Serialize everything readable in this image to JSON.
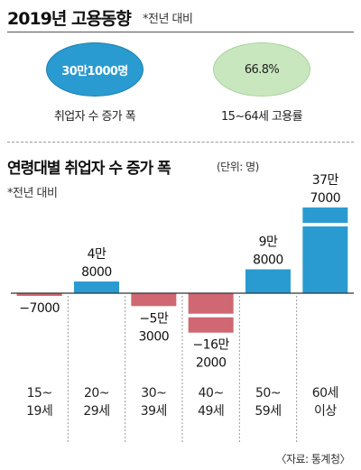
{
  "header": {
    "title": "2019년 고용동향",
    "note": "*전년 대비"
  },
  "stats": [
    {
      "value": "30만1000명",
      "label": "취업자 수 증가 폭",
      "color": "#2a9bd0"
    },
    {
      "value": "66.8%",
      "label": "15~64세 고용률",
      "color": "#c9e7bf"
    }
  ],
  "chart_section": {
    "title": "연령대별 취업자 수 증가 폭",
    "unit": "(단위: 명)",
    "note": "*전년 대비"
  },
  "source": "〈자료: 통계청〉",
  "colors": {
    "positive": "#2a9bd0",
    "negative": "#cf6872",
    "axis": "#333333",
    "divider": "#999999"
  },
  "chart_data": {
    "type": "bar",
    "title": "연령대별 취업자 수 증가 폭",
    "xlabel": "",
    "ylabel": "",
    "unit": "명",
    "categories": [
      "15~19세",
      "20~29세",
      "30~39세",
      "40~49세",
      "50~59세",
      "60세 이상"
    ],
    "category_labels": [
      [
        "15~",
        "19세"
      ],
      [
        "20~",
        "29세"
      ],
      [
        "30~",
        "39세"
      ],
      [
        "40~",
        "49세"
      ],
      [
        "50~",
        "59세"
      ],
      [
        "60세",
        "이상"
      ]
    ],
    "values": [
      -7000,
      48000,
      -53000,
      -162000,
      98000,
      377000
    ],
    "value_labels": [
      [
        "−7000"
      ],
      [
        "4만",
        "8000"
      ],
      [
        "−5만",
        "3000"
      ],
      [
        "−16만",
        "2000"
      ],
      [
        "9만",
        "8000"
      ],
      [
        "37만",
        "7000"
      ]
    ],
    "axis_break": {
      "category_index": 3,
      "direction": "negative"
    },
    "axis_break_top": {
      "category_index": 5,
      "direction": "positive"
    },
    "grid": false,
    "legend": "none"
  }
}
